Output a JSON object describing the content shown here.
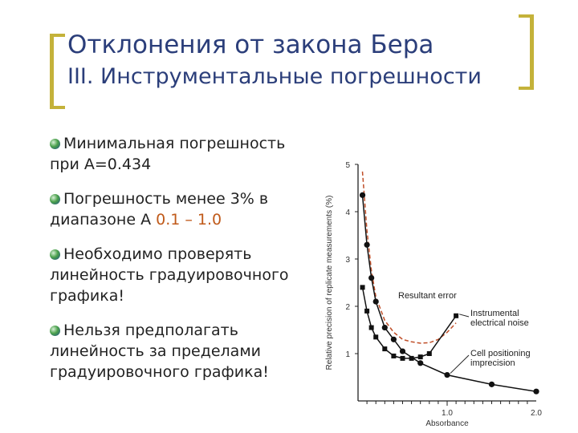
{
  "slide": {
    "title": "Отклонения от закона Бера",
    "subtitle": "III. Инструментальные погрешности",
    "bullets": [
      {
        "text": "Минимальная погрешность при A=0.434"
      },
      {
        "pre": "Погрешность менее 3% в диапазоне А ",
        "highlight": "0.1 – 1.0"
      },
      {
        "text": "Необходимо проверять линейность градуировочного графика!"
      },
      {
        "text": "Нельзя предполагать линейность за пределами градуировочного графика!"
      }
    ]
  },
  "colors": {
    "title": "#2b3e7a",
    "accent_bracket": "#c4b23a",
    "highlight": "#c05a1a",
    "resultant": "#c0502a",
    "markers": "#111111"
  },
  "chart_data": {
    "type": "line",
    "xlabel": "Absorbance",
    "ylabel": "Relative precision of replicate measurements (%)",
    "xlim": [
      0,
      2.0
    ],
    "ylim": [
      0,
      5
    ],
    "x_ticks": [
      "1.0",
      "2.0"
    ],
    "y_ticks": [
      "1",
      "2",
      "3",
      "4",
      "5"
    ],
    "series": [
      {
        "name": "Resultant error",
        "style": "dashed",
        "color": "#c0502a",
        "x": [
          0.05,
          0.1,
          0.15,
          0.2,
          0.3,
          0.4,
          0.5,
          0.6,
          0.7,
          0.8,
          0.9,
          1.0,
          1.1
        ],
        "y": [
          4.85,
          3.6,
          2.75,
          2.2,
          1.7,
          1.45,
          1.3,
          1.25,
          1.22,
          1.23,
          1.3,
          1.45,
          1.65
        ]
      },
      {
        "name": "Instrumental electrical noise",
        "style": "solid",
        "marker": "square",
        "x": [
          0.05,
          0.1,
          0.15,
          0.2,
          0.3,
          0.4,
          0.5,
          0.6,
          0.7,
          0.8,
          1.1
        ],
        "y": [
          2.4,
          1.9,
          1.55,
          1.35,
          1.1,
          0.95,
          0.9,
          0.9,
          0.93,
          1.0,
          1.8
        ]
      },
      {
        "name": "Cell positioning imprecision",
        "style": "solid",
        "marker": "circle",
        "x": [
          0.05,
          0.1,
          0.15,
          0.2,
          0.3,
          0.4,
          0.5,
          0.7,
          1.0,
          1.5,
          2.0
        ],
        "y": [
          4.35,
          3.3,
          2.6,
          2.1,
          1.55,
          1.3,
          1.05,
          0.8,
          0.55,
          0.35,
          0.2
        ]
      }
    ]
  }
}
